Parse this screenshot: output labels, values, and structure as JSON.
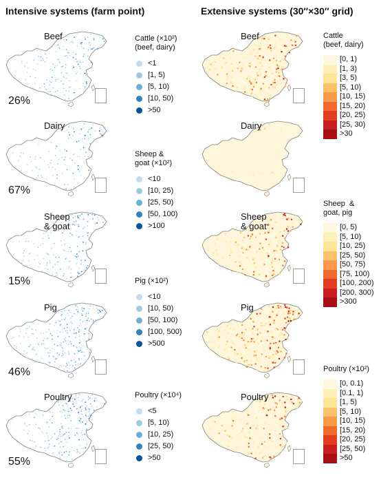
{
  "columns": {
    "intensive": "Intensive systems  (farm point)",
    "extensive": "Extensive systems (30″×30″ grid)"
  },
  "intensive_maps": [
    {
      "label": "Beef",
      "percent": "26%"
    },
    {
      "label": "Dairy",
      "percent": "67%"
    },
    {
      "label": "Sheep\n& goat",
      "percent": "15%"
    },
    {
      "label": "Pig",
      "percent": "46%"
    },
    {
      "label": "Poultry",
      "percent": "55%"
    }
  ],
  "extensive_maps": [
    {
      "label": "Beef"
    },
    {
      "label": "Dairy"
    },
    {
      "label": "Sheep\n& goat"
    },
    {
      "label": "Pig"
    },
    {
      "label": "Poultry"
    }
  ],
  "intensive_legends": [
    {
      "title": "Cattle (×10²)\n(beef, dairy)",
      "items": [
        "<1",
        "[1, 5)",
        "[5, 10)",
        "[10, 50)",
        ">50"
      ]
    },
    {
      "title": "Sheep &\ngoat (×10²)",
      "items": [
        "<10",
        "[10, 25)",
        "[25, 50)",
        "[50, 100)",
        ">100"
      ]
    },
    {
      "title": "Pig (×10²)",
      "items": [
        "<10",
        "[10, 50)",
        "[50, 100)",
        "[100, 500)",
        ">500"
      ]
    },
    {
      "title": "Poultry (×10⁴)",
      "items": [
        "<5",
        "[5, 10)",
        "[10, 25)",
        "[25, 50)",
        ">50"
      ]
    }
  ],
  "extensive_legends": [
    {
      "title": "Cattle\n(beef, dairy)",
      "items": [
        "[0, 1)",
        "[1, 3)",
        "[3, 5)",
        "[5, 10)",
        "[10, 15)",
        "[15, 20)",
        "[20, 25)",
        "[25, 30)",
        ">30"
      ]
    },
    {
      "title": "Sheep  &\ngoat, pig",
      "items": [
        "[0, 5)",
        "[5, 10)",
        "[10, 25)",
        "[25, 50)",
        "[50, 75)",
        "[75, 100)",
        "[100, 200)",
        "[200, 300)",
        ">300"
      ]
    },
    {
      "title": "Poultry (×10²)",
      "items": [
        "[0, 0.1)",
        "[0.1, 1)",
        "[1, 5)",
        "[5, 10)",
        "[10, 15)",
        "[15, 20)",
        "[20, 25)",
        "[25, 50)",
        ">50"
      ]
    }
  ],
  "colors": {
    "blue_ramp": [
      "#c6dbef",
      "#9ecae1",
      "#6baed6",
      "#3182bd",
      "#08519c"
    ],
    "warm_ramp": [
      "#fff8e1",
      "#fff0b8",
      "#fde496",
      "#fdc36a",
      "#fb9a48",
      "#f06a2d",
      "#e03d22",
      "#c81e1e",
      "#a50f15"
    ],
    "map_outline": "#7f7f7f"
  },
  "map_density": {
    "intensive": [
      0.55,
      0.35,
      0.5,
      0.8,
      0.6
    ],
    "extensive": [
      0.55,
      0.02,
      0.5,
      0.75,
      0.45
    ]
  }
}
